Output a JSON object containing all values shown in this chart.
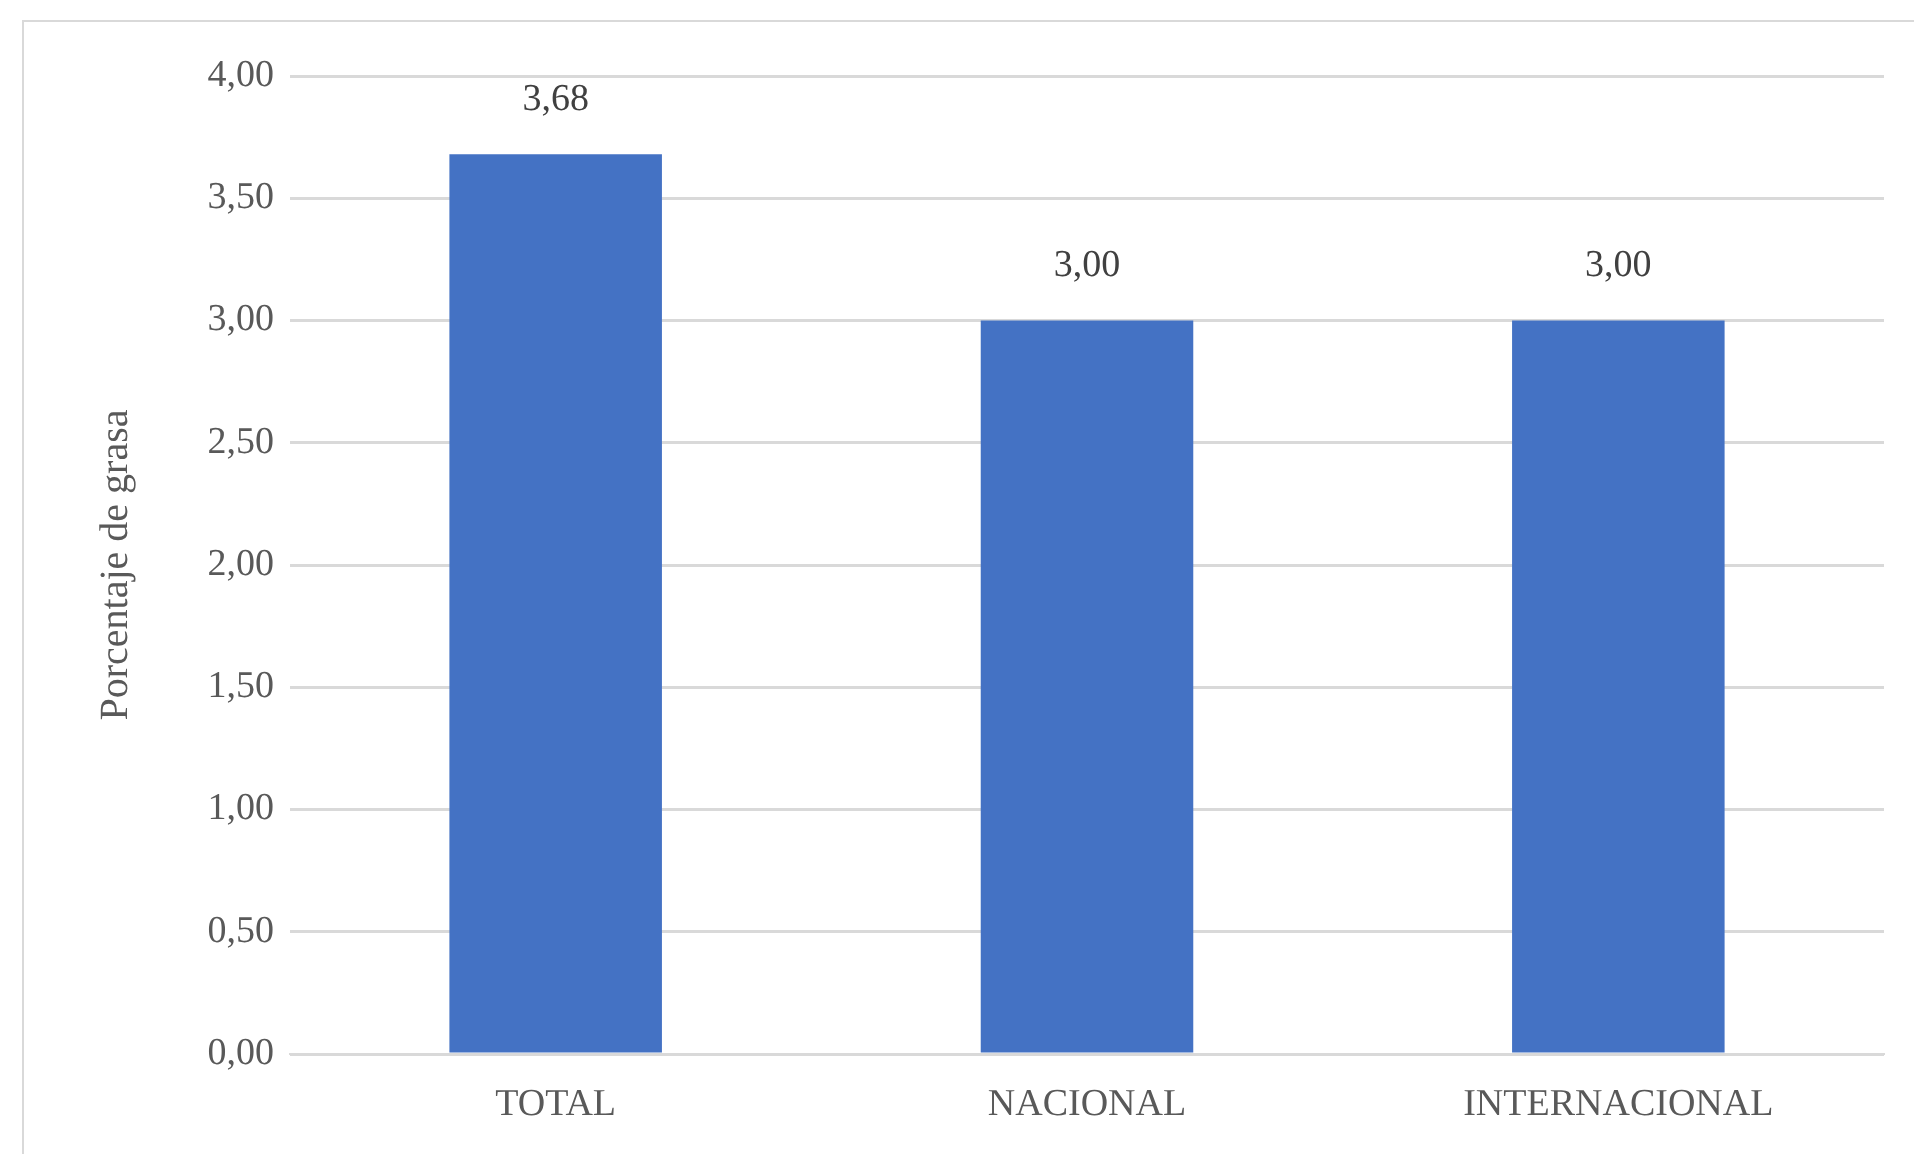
{
  "chart_data": {
    "type": "bar",
    "ylabel": "Porcentaje de grasa",
    "categories": [
      "TOTAL",
      "NACIONAL",
      "INTERNACIONAL"
    ],
    "values": [
      3.68,
      3.0,
      3.0
    ],
    "color": "#4472c4",
    "value_labels": [
      "3,68",
      "3,00",
      "3,00"
    ],
    "ylim": [
      0,
      4
    ],
    "yticks": [
      {
        "value": 0,
        "label": "0,00"
      },
      {
        "value": 0.5,
        "label": "0,50"
      },
      {
        "value": 1,
        "label": "1,00"
      },
      {
        "value": 1.5,
        "label": "1,50"
      },
      {
        "value": 2,
        "label": "2,00"
      },
      {
        "value": 2.5,
        "label": "2,50"
      },
      {
        "value": 3,
        "label": "3,00"
      },
      {
        "value": 3.5,
        "label": "3,50"
      },
      {
        "value": 4,
        "label": "4,00"
      }
    ],
    "grid": "y"
  }
}
